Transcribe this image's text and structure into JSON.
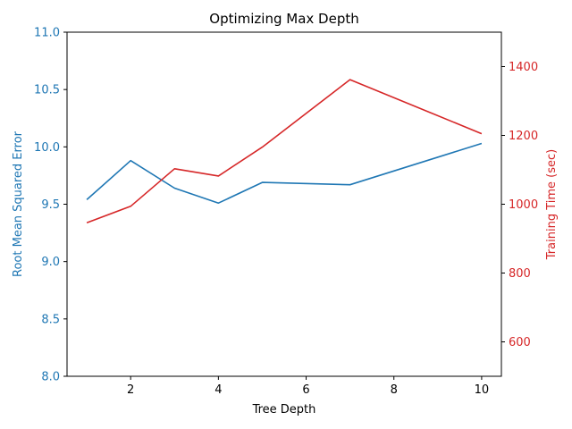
{
  "chart_data": {
    "type": "line",
    "title": "Optimizing Max Depth",
    "xlabel": "Tree Depth",
    "x": [
      1,
      2,
      3,
      4,
      5,
      7,
      10
    ],
    "xlim": [
      0.55,
      10.45
    ],
    "xticks": [
      2,
      4,
      6,
      8,
      10
    ],
    "grid": false,
    "left_axis": {
      "label": "Root Mean Squared Error",
      "color": "#1f77b4",
      "ylim": [
        8.0,
        11.0
      ],
      "ticks": [
        "8.0",
        "8.5",
        "9.0",
        "9.5",
        "10.0",
        "10.5",
        "11.0"
      ]
    },
    "right_axis": {
      "label": "Training Time (sec)",
      "color": "#d62728",
      "ylim": [
        500,
        1500
      ],
      "ticks": [
        "600",
        "800",
        "1000",
        "1200",
        "1400"
      ]
    },
    "series": [
      {
        "axis": "left",
        "color": "#1f77b4",
        "values": [
          9.54,
          9.88,
          9.64,
          9.51,
          9.69,
          9.67,
          10.03
        ]
      },
      {
        "axis": "right",
        "color": "#d62728",
        "values": [
          946,
          994,
          1103,
          1082,
          1166,
          1362,
          1205
        ]
      }
    ]
  }
}
